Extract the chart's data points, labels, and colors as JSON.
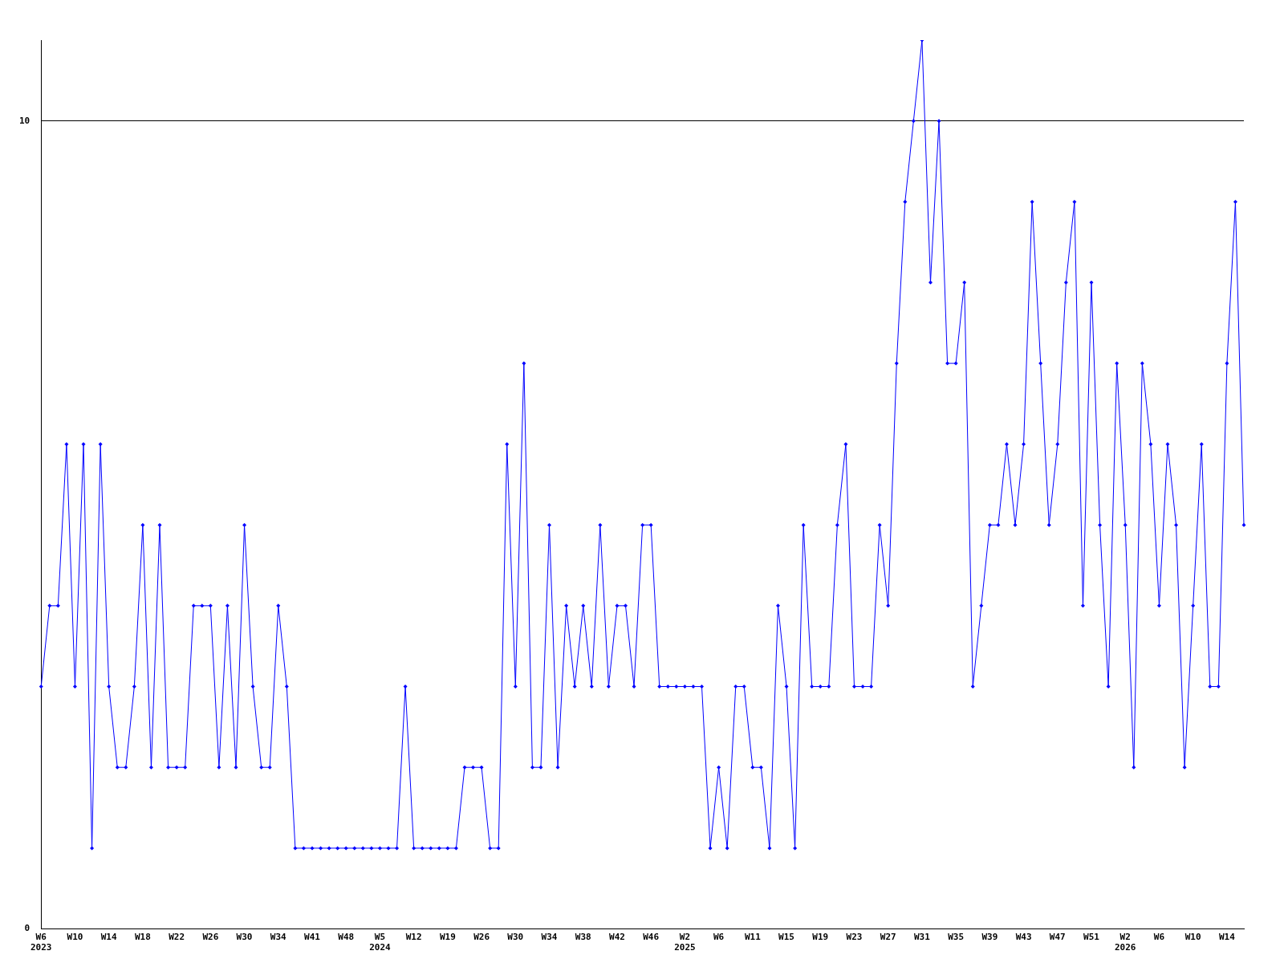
{
  "chart_data": {
    "type": "line",
    "categories": [
      "W6\n2023",
      null,
      null,
      null,
      "W10",
      null,
      null,
      null,
      "W14",
      null,
      null,
      null,
      "W18",
      null,
      null,
      null,
      "W22",
      null,
      null,
      null,
      "W26",
      null,
      null,
      null,
      "W30",
      null,
      null,
      null,
      "W34",
      null,
      null,
      null,
      "W41",
      null,
      null,
      null,
      "W48",
      null,
      null,
      null,
      "W5\n2024",
      null,
      null,
      null,
      "W12",
      null,
      null,
      null,
      "W19",
      null,
      null,
      null,
      "W26",
      null,
      null,
      null,
      "W30",
      null,
      null,
      null,
      "W34",
      null,
      null,
      null,
      "W38",
      null,
      null,
      null,
      "W42",
      null,
      null,
      null,
      "W46",
      null,
      null,
      null,
      "W2\n2025",
      null,
      null,
      null,
      "W6",
      null,
      null,
      null,
      "W11",
      null,
      null,
      null,
      "W15",
      null,
      null,
      null,
      "W19",
      null,
      null,
      null,
      "W23",
      null,
      null,
      null,
      "W27",
      null,
      null,
      null,
      "W31",
      null,
      null,
      null,
      "W35",
      null,
      null,
      null,
      "W39",
      null,
      null,
      null,
      "W43",
      null,
      null,
      null,
      "W47",
      null,
      null,
      null,
      "W51",
      null,
      null,
      null,
      "W2\n2026",
      null,
      null,
      null,
      "W6",
      null,
      null,
      null,
      "W10",
      null,
      null,
      null,
      "W14",
      null,
      null
    ],
    "series": [
      {
        "color": "#0000ff",
        "values": [
          3,
          4,
          4,
          6,
          3,
          6,
          1,
          6,
          3,
          2,
          2,
          3,
          5,
          2,
          5,
          2,
          2,
          2,
          4,
          4,
          4,
          2,
          4,
          2,
          5,
          3,
          2,
          2,
          4,
          3,
          1,
          1,
          1,
          1,
          1,
          1,
          1,
          1,
          1,
          1,
          1,
          1,
          1,
          3,
          1,
          1,
          1,
          1,
          1,
          1,
          2,
          2,
          2,
          1,
          1,
          6,
          3,
          7,
          2,
          2,
          5,
          2,
          4,
          3,
          4,
          3,
          5,
          3,
          4,
          4,
          3,
          5,
          5,
          3,
          3,
          3,
          3,
          3,
          3,
          1,
          2,
          1,
          3,
          3,
          2,
          2,
          1,
          4,
          3,
          1,
          5,
          3,
          3,
          3,
          5,
          6,
          3,
          3,
          3,
          5,
          4,
          7,
          9,
          10,
          11,
          8,
          10,
          7,
          7,
          8,
          3,
          4,
          5,
          5,
          6,
          5,
          6,
          9,
          7,
          5,
          6,
          8,
          9,
          4,
          8,
          5,
          3,
          7,
          5,
          2,
          7,
          6,
          4,
          6,
          5,
          2,
          4,
          6,
          3,
          3,
          7,
          9,
          5
        ]
      }
    ],
    "ylim": [
      0,
      11
    ],
    "yticks": [
      0,
      10
    ],
    "grid": "y",
    "legend": false,
    "marker": "diamond",
    "line_style": "solid"
  }
}
